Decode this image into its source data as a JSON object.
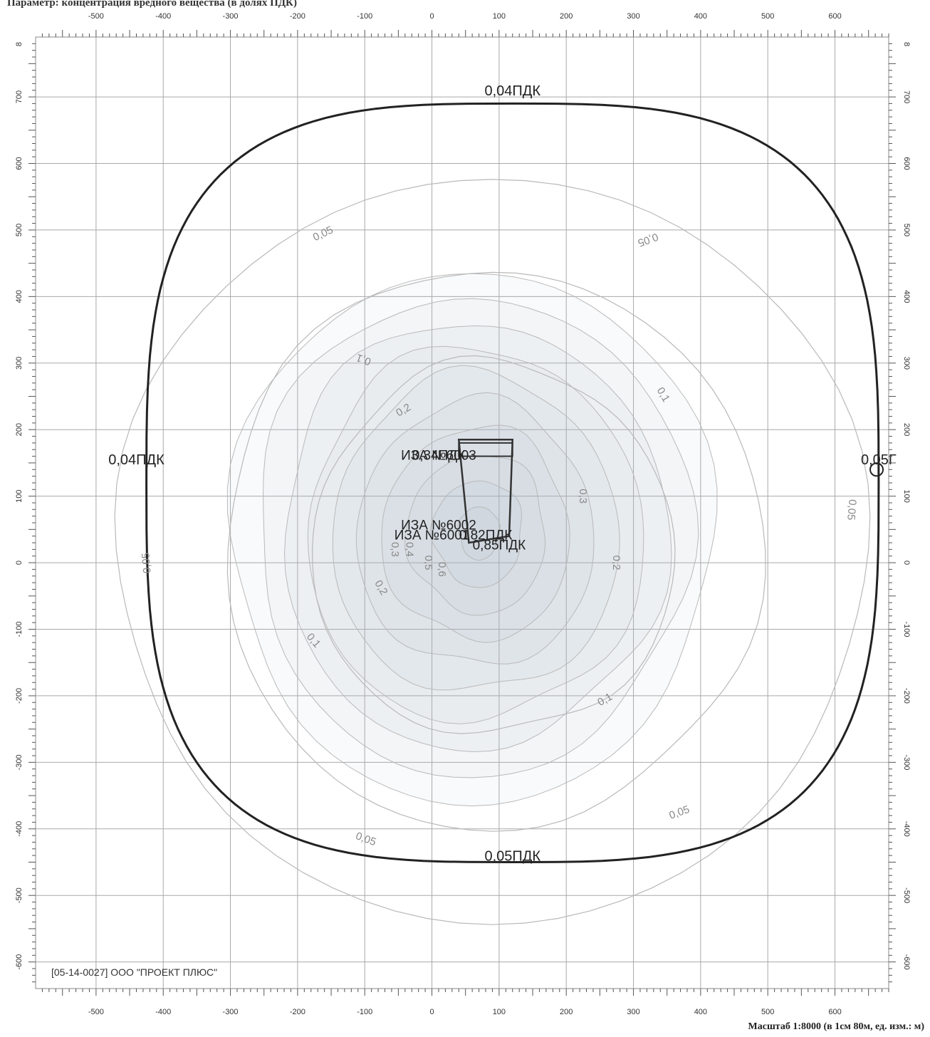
{
  "header": {
    "title": "Параметр: концентрация вредного вещества (в долях ПДК)"
  },
  "footer": {
    "organization": "[05-14-0027] ООО \"ПРОЕКТ ПЛЮС\"",
    "scale_note": "Масштаб 1:8000 (в 1см 80м, ед. изм.: м)"
  },
  "axes": {
    "x_ticks": [
      "-500",
      "-400",
      "-300",
      "-200",
      "-100",
      "0",
      "100",
      "200",
      "300",
      "400",
      "500",
      "600"
    ],
    "y_ticks": [
      "700",
      "600",
      "500",
      "400",
      "300",
      "200",
      "100",
      "0",
      "-100",
      "-200",
      "-300",
      "-400",
      "-500",
      "-600"
    ],
    "y_top_left": "8",
    "y_top_right": "8"
  },
  "map": {
    "unit": "м",
    "x_range": [
      -590,
      680
    ],
    "y_range": [
      -640,
      790
    ],
    "grid": true,
    "boundary_labels": [
      {
        "text": "0,04ПДК",
        "x": 120,
        "y": 702
      },
      {
        "text": "0,04ПДК",
        "x": -440,
        "y": 148
      },
      {
        "text": "0,05ПДК",
        "x": 120,
        "y": -448
      },
      {
        "text": "0,05Г",
        "x": 665,
        "y": 148
      }
    ],
    "isoline_labels": [
      {
        "text": "0,05",
        "x": -160,
        "y": 490,
        "rotate": -25
      },
      {
        "text": "0,05",
        "x": 320,
        "y": 490,
        "rotate": 160
      },
      {
        "text": "0,05",
        "x": 620,
        "y": 80,
        "rotate": 95
      },
      {
        "text": "0,05",
        "x": -420,
        "y": 0,
        "rotate": -95
      },
      {
        "text": "0,05",
        "x": -100,
        "y": -420,
        "rotate": 20
      },
      {
        "text": "0,05",
        "x": 370,
        "y": -380,
        "rotate": -20
      },
      {
        "text": "0,1",
        "x": -100,
        "y": 310,
        "rotate": 200
      },
      {
        "text": "0,1",
        "x": 340,
        "y": 250,
        "rotate": 60
      },
      {
        "text": "0,1",
        "x": -180,
        "y": -120,
        "rotate": 50
      },
      {
        "text": "0,1",
        "x": 260,
        "y": -210,
        "rotate": -30
      },
      {
        "text": "0,2",
        "x": -40,
        "y": 225,
        "rotate": -30
      },
      {
        "text": "0,2",
        "x": -80,
        "y": -40,
        "rotate": 60
      },
      {
        "text": "0,2",
        "x": 270,
        "y": 0,
        "rotate": 90
      },
      {
        "text": "0,3",
        "x": -60,
        "y": 20,
        "rotate": 90
      },
      {
        "text": "0,3",
        "x": 220,
        "y": 100,
        "rotate": 90
      },
      {
        "text": "0,4",
        "x": -38,
        "y": 20,
        "rotate": 90
      },
      {
        "text": "0,5",
        "x": -10,
        "y": 0,
        "rotate": 90
      },
      {
        "text": "0,6",
        "x": 10,
        "y": -10,
        "rotate": 90
      }
    ],
    "source_labels": [
      {
        "text": "ИЗА №6003",
        "x": 10,
        "y": 155
      },
      {
        "text": "0,34ПДК",
        "x": 10,
        "y": 155
      },
      {
        "text": "ИЗА №6002",
        "x": 10,
        "y": 50
      },
      {
        "text": "ИЗА №6001",
        "x": 0,
        "y": 35
      },
      {
        "text": "0,82ПДК",
        "x": 80,
        "y": 35
      },
      {
        "text": "0,85ПДК",
        "x": 100,
        "y": 20
      }
    ],
    "level_count": 10
  },
  "colors": {
    "boundary": "#222222",
    "isoline": "#b9b9b9",
    "grid": "#a9a9a9",
    "fill": "#a3b4cc"
  }
}
